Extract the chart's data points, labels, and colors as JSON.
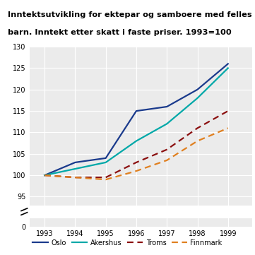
{
  "title_line1": "Inntektsutvikling for ektepar og samboere med felles",
  "title_line2": "barn. Inntekt etter skatt i faste priser. 1993=100",
  "years": [
    1993,
    1994,
    1995,
    1996,
    1997,
    1998,
    1999
  ],
  "oslo": [
    100.0,
    103.0,
    104.0,
    115.0,
    116.0,
    120.0,
    126.0
  ],
  "akershus": [
    100.0,
    101.5,
    103.0,
    108.0,
    112.0,
    118.0,
    125.0
  ],
  "troms": [
    100.0,
    99.5,
    99.5,
    103.0,
    106.0,
    111.0,
    115.0
  ],
  "finnmark": [
    100.0,
    99.5,
    99.0,
    101.0,
    103.5,
    108.0,
    111.0
  ],
  "oslo_color": "#1a3a8c",
  "akershus_color": "#00a8a8",
  "troms_color": "#8b1010",
  "finnmark_color": "#e08020",
  "teal_line_color": "#40c0c0",
  "plot_bg_color": "#ebebeb",
  "grid_color": "#ffffff",
  "yticks_main": [
    95,
    100,
    105,
    110,
    115,
    120,
    125,
    130
  ],
  "ytick_main_labels": [
    "95",
    "100",
    "105",
    "110",
    "115",
    "120",
    "125",
    "130"
  ],
  "ytick_zero": 0,
  "xlim": [
    1992.5,
    1999.8
  ],
  "ylim_main": [
    93,
    130
  ],
  "ylim_zero": [
    0,
    3
  ]
}
